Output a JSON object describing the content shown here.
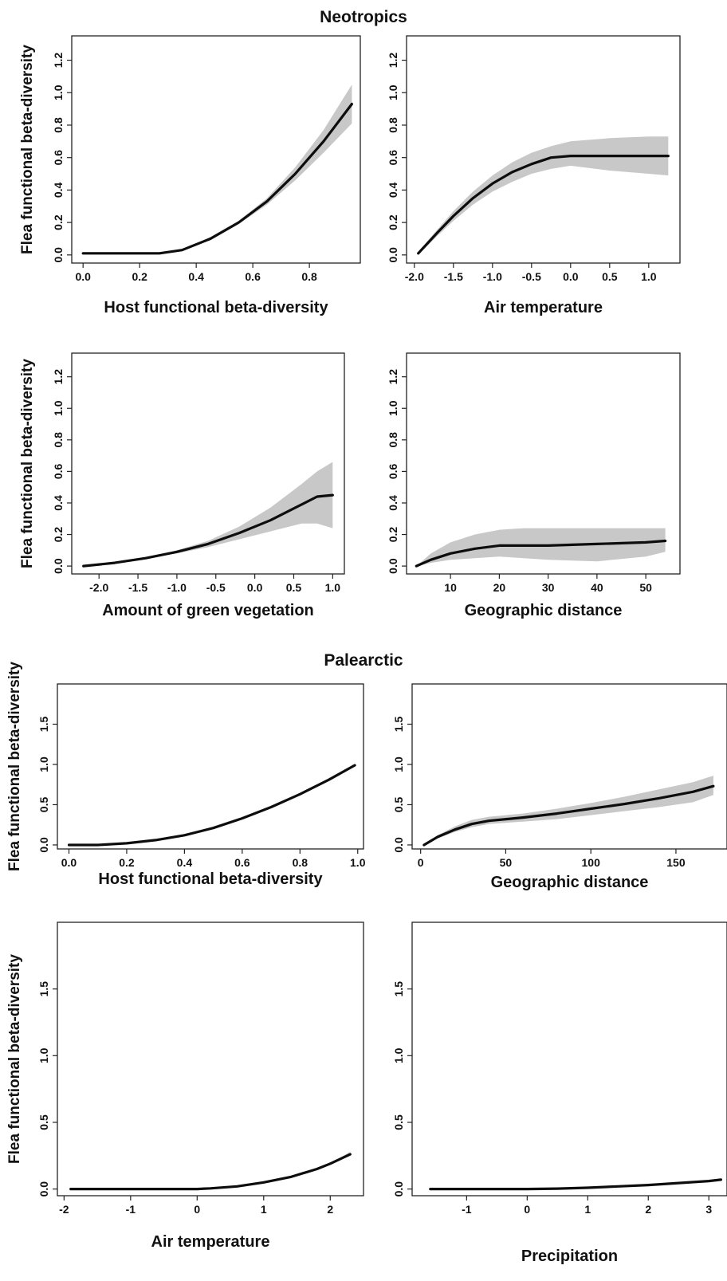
{
  "sections": [
    {
      "title": "Neotropics"
    },
    {
      "title": "Palearctic"
    }
  ],
  "y_axis_label": "Flea functional beta-diversity",
  "colors": {
    "line": "#0d0d0d",
    "band": "#c8c8c8",
    "axes": "#222222"
  },
  "chart_data": [
    {
      "type": "line",
      "section": "Neotropics",
      "xlabel": "Host functional beta-diversity",
      "ylabel": "Flea functional beta-diversity",
      "xlim": [
        -0.04,
        0.98
      ],
      "ylim": [
        -0.05,
        1.35
      ],
      "xticks": [
        0.0,
        0.2,
        0.4,
        0.6,
        0.8
      ],
      "xtick_labels": [
        "0.0",
        "0.2",
        "0.4",
        "0.6",
        "0.8"
      ],
      "yticks": [
        0.0,
        0.2,
        0.4,
        0.6,
        0.8,
        1.0,
        1.2
      ],
      "ytick_labels": [
        "0.0",
        "0.2",
        "0.4",
        "0.6",
        "0.8",
        "1.0",
        "1.2"
      ],
      "x": [
        0.0,
        0.1,
        0.2,
        0.27,
        0.35,
        0.45,
        0.55,
        0.65,
        0.75,
        0.85,
        0.95
      ],
      "y": [
        0.01,
        0.01,
        0.01,
        0.01,
        0.03,
        0.1,
        0.2,
        0.33,
        0.5,
        0.7,
        0.93
      ],
      "lower": [
        0.01,
        0.01,
        0.01,
        0.01,
        0.03,
        0.09,
        0.19,
        0.31,
        0.46,
        0.63,
        0.81
      ],
      "upper": [
        0.01,
        0.01,
        0.01,
        0.01,
        0.03,
        0.11,
        0.21,
        0.35,
        0.54,
        0.77,
        1.05
      ]
    },
    {
      "type": "line",
      "section": "Neotropics",
      "xlabel": "Air temperature",
      "ylabel": "",
      "xlim": [
        -2.1,
        1.4
      ],
      "ylim": [
        -0.05,
        1.35
      ],
      "xticks": [
        -2.0,
        -1.5,
        -1.0,
        -0.5,
        0.0,
        0.5,
        1.0
      ],
      "xtick_labels": [
        "-2.0",
        "-1.5",
        "-1.0",
        "-0.5",
        "0.0",
        "0.5",
        "1.0"
      ],
      "yticks": [
        0.0,
        0.2,
        0.4,
        0.6,
        0.8,
        1.0,
        1.2
      ],
      "ytick_labels": [
        "0.0",
        "0.2",
        "0.4",
        "0.6",
        "0.8",
        "1.0",
        "1.2"
      ],
      "x": [
        -1.95,
        -1.7,
        -1.5,
        -1.25,
        -1.0,
        -0.75,
        -0.5,
        -0.25,
        0.0,
        0.5,
        1.0,
        1.25
      ],
      "y": [
        0.01,
        0.14,
        0.24,
        0.35,
        0.44,
        0.51,
        0.56,
        0.6,
        0.61,
        0.61,
        0.61,
        0.61
      ],
      "lower": [
        0.0,
        0.12,
        0.21,
        0.31,
        0.39,
        0.45,
        0.5,
        0.53,
        0.55,
        0.52,
        0.5,
        0.49
      ],
      "upper": [
        0.02,
        0.16,
        0.27,
        0.39,
        0.49,
        0.57,
        0.63,
        0.67,
        0.7,
        0.72,
        0.73,
        0.73
      ]
    },
    {
      "type": "line",
      "section": "Neotropics",
      "xlabel": "Amount of green vegetation",
      "ylabel": "Flea functional beta-diversity",
      "xlim": [
        -2.35,
        1.15
      ],
      "ylim": [
        -0.05,
        1.35
      ],
      "xticks": [
        -2.0,
        -1.5,
        -1.0,
        -0.5,
        0.0,
        0.5,
        1.0
      ],
      "xtick_labels": [
        "-2.0",
        "-1.5",
        "-1.0",
        "-0.5",
        "0.0",
        "0.5",
        "1.0"
      ],
      "yticks": [
        0.0,
        0.2,
        0.4,
        0.6,
        0.8,
        1.0,
        1.2
      ],
      "ytick_labels": [
        "0.0",
        "0.2",
        "0.4",
        "0.6",
        "0.8",
        "1.0",
        "1.2"
      ],
      "x": [
        -2.2,
        -1.8,
        -1.4,
        -1.0,
        -0.6,
        -0.2,
        0.2,
        0.6,
        0.8,
        1.0
      ],
      "y": [
        0.0,
        0.02,
        0.05,
        0.09,
        0.14,
        0.21,
        0.29,
        0.39,
        0.44,
        0.45
      ],
      "lower": [
        0.0,
        0.02,
        0.05,
        0.08,
        0.12,
        0.17,
        0.22,
        0.27,
        0.27,
        0.24
      ],
      "upper": [
        0.0,
        0.02,
        0.05,
        0.1,
        0.16,
        0.25,
        0.37,
        0.52,
        0.6,
        0.66
      ]
    },
    {
      "type": "line",
      "section": "Neotropics",
      "xlabel": "Geographic distance",
      "ylabel": "",
      "xlim": [
        1,
        57
      ],
      "ylim": [
        -0.05,
        1.35
      ],
      "xticks": [
        10,
        20,
        30,
        40,
        50
      ],
      "xtick_labels": [
        "10",
        "20",
        "30",
        "40",
        "50"
      ],
      "yticks": [
        0.0,
        0.2,
        0.4,
        0.6,
        0.8,
        1.0,
        1.2
      ],
      "ytick_labels": [
        "0.0",
        "0.2",
        "0.4",
        "0.6",
        "0.8",
        "1.0",
        "1.2"
      ],
      "x": [
        3,
        6,
        10,
        15,
        20,
        25,
        30,
        40,
        50,
        54
      ],
      "y": [
        0.0,
        0.04,
        0.08,
        0.11,
        0.13,
        0.13,
        0.13,
        0.14,
        0.15,
        0.16
      ],
      "lower": [
        0.0,
        0.02,
        0.04,
        0.05,
        0.06,
        0.05,
        0.04,
        0.03,
        0.06,
        0.09
      ],
      "upper": [
        0.0,
        0.08,
        0.15,
        0.2,
        0.23,
        0.24,
        0.24,
        0.24,
        0.24,
        0.24
      ]
    },
    {
      "type": "line",
      "section": "Palearctic",
      "xlabel": "Host functional beta-diversity",
      "ylabel": "Flea functional beta-diversity",
      "xlim": [
        -0.04,
        1.02
      ],
      "ylim": [
        -0.05,
        2.0
      ],
      "xticks": [
        0.0,
        0.2,
        0.4,
        0.6,
        0.8,
        1.0
      ],
      "xtick_labels": [
        "0.0",
        "0.2",
        "0.4",
        "0.6",
        "0.8",
        "1.0"
      ],
      "yticks": [
        0.0,
        0.5,
        1.0,
        1.5
      ],
      "ytick_labels": [
        "0.0",
        "0.5",
        "1.0",
        "1.5"
      ],
      "x": [
        0.0,
        0.1,
        0.2,
        0.3,
        0.4,
        0.5,
        0.6,
        0.7,
        0.8,
        0.9,
        0.99
      ],
      "y": [
        0.0,
        0.0,
        0.02,
        0.06,
        0.12,
        0.21,
        0.33,
        0.47,
        0.63,
        0.81,
        0.99
      ],
      "lower": [
        0.0,
        0.0,
        0.02,
        0.06,
        0.12,
        0.21,
        0.33,
        0.47,
        0.63,
        0.81,
        0.99
      ],
      "upper": [
        0.0,
        0.0,
        0.02,
        0.06,
        0.12,
        0.21,
        0.33,
        0.47,
        0.63,
        0.81,
        0.99
      ]
    },
    {
      "type": "line",
      "section": "Palearctic",
      "xlabel": "Geographic distance",
      "ylabel": "",
      "xlim": [
        -5,
        180
      ],
      "ylim": [
        -0.05,
        2.0
      ],
      "xticks": [
        0,
        50,
        100,
        150
      ],
      "xtick_labels": [
        "0",
        "50",
        "100",
        "150"
      ],
      "yticks": [
        0.0,
        0.5,
        1.0,
        1.5
      ],
      "ytick_labels": [
        "0.0",
        "0.5",
        "1.0",
        "1.5"
      ],
      "x": [
        2,
        10,
        20,
        30,
        40,
        60,
        80,
        100,
        120,
        140,
        160,
        172
      ],
      "y": [
        0.0,
        0.1,
        0.19,
        0.26,
        0.3,
        0.34,
        0.39,
        0.45,
        0.51,
        0.58,
        0.66,
        0.73
      ],
      "lower": [
        0.0,
        0.08,
        0.16,
        0.22,
        0.26,
        0.29,
        0.32,
        0.37,
        0.42,
        0.47,
        0.53,
        0.62
      ],
      "upper": [
        0.0,
        0.12,
        0.23,
        0.31,
        0.35,
        0.39,
        0.45,
        0.52,
        0.6,
        0.69,
        0.78,
        0.86
      ]
    },
    {
      "type": "line",
      "section": "Palearctic",
      "xlabel": "Air temperature",
      "ylabel": "Flea functional beta-diversity",
      "xlim": [
        -2.1,
        2.5
      ],
      "ylim": [
        -0.05,
        2.0
      ],
      "xticks": [
        -2,
        -1,
        0,
        1,
        2
      ],
      "xtick_labels": [
        "-2",
        "-1",
        "0",
        "1",
        "2"
      ],
      "yticks": [
        0.0,
        0.5,
        1.0,
        1.5
      ],
      "ytick_labels": [
        "0.0",
        "0.5",
        "1.0",
        "1.5"
      ],
      "x": [
        -1.9,
        -1.0,
        0.0,
        0.2,
        0.6,
        1.0,
        1.4,
        1.8,
        2.0,
        2.3
      ],
      "y": [
        0.0,
        0.0,
        0.0,
        0.005,
        0.02,
        0.05,
        0.09,
        0.15,
        0.19,
        0.26
      ],
      "lower": [
        0.0,
        0.0,
        0.0,
        0.005,
        0.02,
        0.05,
        0.09,
        0.15,
        0.19,
        0.25
      ],
      "upper": [
        0.0,
        0.0,
        0.0,
        0.005,
        0.02,
        0.05,
        0.09,
        0.15,
        0.19,
        0.28
      ]
    },
    {
      "type": "line",
      "section": "Palearctic",
      "xlabel": "Precipitation",
      "ylabel": "",
      "xlim": [
        -1.9,
        3.3
      ],
      "ylim": [
        -0.05,
        2.0
      ],
      "xticks": [
        -1,
        0,
        1,
        2,
        3
      ],
      "xtick_labels": [
        "-1",
        "0",
        "1",
        "2",
        "3"
      ],
      "yticks": [
        0.0,
        0.5,
        1.0,
        1.5
      ],
      "ytick_labels": [
        "0.0",
        "0.5",
        "1.0",
        "1.5"
      ],
      "x": [
        -1.6,
        -1.0,
        0.0,
        0.5,
        1.0,
        1.5,
        2.0,
        2.5,
        3.0,
        3.2
      ],
      "y": [
        0.0,
        0.0,
        0.0,
        0.003,
        0.01,
        0.02,
        0.03,
        0.045,
        0.06,
        0.07
      ],
      "lower": [
        0.0,
        0.0,
        0.0,
        0.002,
        0.008,
        0.017,
        0.026,
        0.04,
        0.054,
        0.062
      ],
      "upper": [
        0.0,
        0.0,
        0.0,
        0.004,
        0.012,
        0.023,
        0.034,
        0.05,
        0.066,
        0.078
      ]
    }
  ]
}
